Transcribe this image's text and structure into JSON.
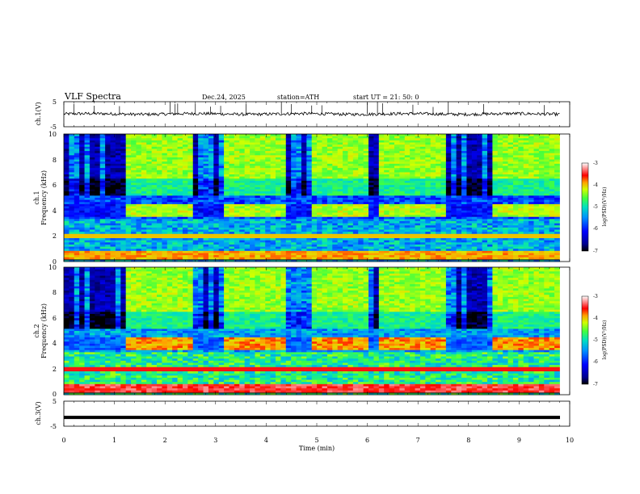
{
  "header": {
    "title": "VLF  Spectra",
    "date": "Dec.24, 2025",
    "station": "station=ATH",
    "start": "start  UT  =   21: 50: 0"
  },
  "chart_data": [
    {
      "type": "line",
      "name": "ch1-waveform",
      "ylabel": "ch.1(V)",
      "ylim": [
        -5,
        5
      ],
      "yticks": [
        "5",
        "-5"
      ],
      "xlim": [
        0,
        10
      ]
    },
    {
      "type": "heatmap",
      "name": "ch1-spectrogram",
      "ylabel_line1": "ch.1",
      "ylabel_line2": "Frequency  (kHz)",
      "ylim": [
        0,
        10
      ],
      "yticks": [
        "0",
        "2",
        "4",
        "6",
        "8",
        "10"
      ],
      "xlim": [
        0,
        10
      ],
      "band_4khz_on_intervals_min": [
        [
          1.2,
          2.55
        ],
        [
          3.15,
          4.4
        ],
        [
          4.85,
          6.05
        ],
        [
          6.25,
          7.55
        ],
        [
          8.45,
          9.75
        ]
      ],
      "colorbar": {
        "label": "log(PSD)(V²/Hz)",
        "ticks": [
          "-3",
          "-4",
          "-5",
          "-6",
          "-7"
        ],
        "range": [
          -7,
          -3
        ]
      }
    },
    {
      "type": "heatmap",
      "name": "ch2-spectrogram",
      "ylabel_line1": "ch.2",
      "ylabel_line2": "Frequency  (kHz)",
      "ylim": [
        0,
        10
      ],
      "yticks": [
        "0",
        "2",
        "4",
        "6",
        "8",
        "10"
      ],
      "xlim": [
        0,
        10
      ],
      "band_4khz_on_intervals_min": [
        [
          1.2,
          2.55
        ],
        [
          3.15,
          4.4
        ],
        [
          4.85,
          6.05
        ],
        [
          6.25,
          7.55
        ],
        [
          8.45,
          9.75
        ]
      ],
      "colorbar": {
        "label": "log(PSD)(V²/Hz)",
        "ticks": [
          "-3",
          "-4",
          "-5",
          "-6",
          "-7"
        ],
        "range": [
          -7,
          -3
        ]
      }
    },
    {
      "type": "line",
      "name": "ch3-waveform",
      "ylabel": "ch.3(V)",
      "ylim": [
        -5,
        5
      ],
      "yticks": [
        "5",
        "-5"
      ],
      "xlim": [
        0,
        10
      ],
      "constant_value": -1.5
    }
  ],
  "xaxis": {
    "label": "Time  (min)",
    "ticks": [
      "0",
      "1",
      "2",
      "3",
      "4",
      "5",
      "6",
      "7",
      "8",
      "9",
      "10"
    ]
  },
  "colors": {
    "colormap": [
      "#000080",
      "#0000ff",
      "#0080ff",
      "#00ffff",
      "#00ff80",
      "#80ff00",
      "#ffff00",
      "#ff8000",
      "#ff0000",
      "#ffffff"
    ]
  }
}
